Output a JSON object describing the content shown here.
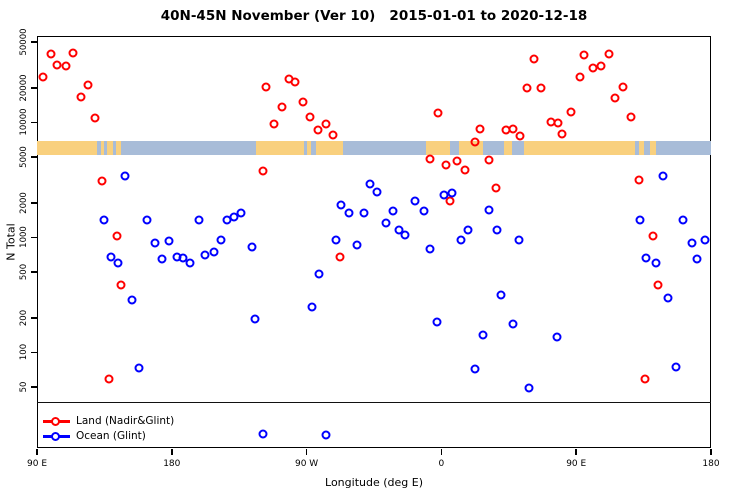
{
  "title": "40N-45N November (Ver 10)   2015-01-01 to 2020-12-18",
  "chart_data": {
    "type": "scatter",
    "xlabel": "Longitude (deg E)",
    "ylabel": "N Total",
    "y_scale": "log",
    "ylim": [
      15,
      60000
    ],
    "y_ticks": [
      50000,
      20000,
      10000,
      5000,
      2000,
      1000,
      500,
      200,
      100,
      50
    ],
    "x_axis": {
      "span_deg": 450,
      "note": "axis runs 90E eastward wrapping: 90E,180,90W,0,90E,180",
      "ticks": [
        {
          "deg": 0,
          "label": "90 E"
        },
        {
          "deg": 90,
          "label": "180"
        },
        {
          "deg": 180,
          "label": "90 W"
        },
        {
          "deg": 270,
          "label": "0"
        },
        {
          "deg": 360,
          "label": "90 E"
        },
        {
          "deg": 450,
          "label": "180"
        }
      ]
    },
    "legend": [
      {
        "name": "Land (Nadir&Glint)",
        "color": "#ff0000"
      },
      {
        "name": "Ocean (Glint)",
        "color": "#0000ff"
      }
    ],
    "map_band": {
      "meaning": "40N-45N latitude strip of world map",
      "land_color": "#f9d07e",
      "ocean_color": "#a8bcd8",
      "value_range_n": [
        5900,
        7600
      ],
      "land_segments_deg": [
        [
          0,
          40
        ],
        [
          43,
          45
        ],
        [
          47,
          51
        ],
        [
          53,
          56
        ],
        [
          146,
          178
        ],
        [
          180,
          183
        ],
        [
          186,
          204
        ],
        [
          260,
          276
        ],
        [
          282,
          298
        ],
        [
          312,
          317
        ],
        [
          325,
          399
        ],
        [
          402,
          405
        ],
        [
          409,
          413
        ]
      ]
    },
    "series": [
      {
        "name": "Land (Nadir&Glint)",
        "color": "#ff0000",
        "points": [
          [
            4.2,
            25000
          ],
          [
            9.1,
            39000
          ],
          [
            13.5,
            31500
          ],
          [
            19.3,
            31000
          ],
          [
            23.8,
            40400
          ],
          [
            29.1,
            16500
          ],
          [
            34.2,
            21000
          ],
          [
            38.7,
            11000
          ],
          [
            43.3,
            3100
          ],
          [
            47.8,
            59
          ],
          [
            53.3,
            1020
          ],
          [
            56,
            385
          ],
          [
            151.1,
            3800
          ],
          [
            152.7,
            20300
          ],
          [
            158.5,
            9600
          ],
          [
            163.8,
            13700
          ],
          [
            168.2,
            24000
          ],
          [
            172.2,
            22600
          ],
          [
            177.8,
            15100
          ],
          [
            182.2,
            11200
          ],
          [
            187.8,
            8650
          ],
          [
            192.7,
            9700
          ],
          [
            197.3,
            7800
          ],
          [
            202.2,
            677
          ],
          [
            262.2,
            4800
          ],
          [
            267.8,
            12000
          ],
          [
            272.9,
            4260
          ],
          [
            276,
            2080
          ],
          [
            280.7,
            4650
          ],
          [
            285.5,
            3850
          ],
          [
            292.2,
            6800
          ],
          [
            295.5,
            8700
          ],
          [
            302,
            4700
          ],
          [
            306.7,
            2670
          ],
          [
            312.9,
            8650
          ],
          [
            317.8,
            8700
          ],
          [
            322.2,
            7600
          ],
          [
            327.1,
            20000
          ],
          [
            331.8,
            35500
          ],
          [
            336.7,
            20000
          ],
          [
            343.3,
            10000
          ],
          [
            347.8,
            9800
          ],
          [
            350.7,
            7900
          ],
          [
            356.7,
            12400
          ],
          [
            362.7,
            25000
          ],
          [
            365.5,
            38800
          ],
          [
            371.5,
            30000
          ],
          [
            376.7,
            31000
          ],
          [
            382.2,
            39000
          ],
          [
            386.2,
            16400
          ],
          [
            391.5,
            20400
          ],
          [
            396.7,
            11100
          ],
          [
            402,
            3130
          ],
          [
            406,
            59
          ],
          [
            411.1,
            1030
          ],
          [
            414.5,
            383
          ]
        ]
      },
      {
        "name": "Ocean (Glint)",
        "color": "#0000ff",
        "points": [
          [
            44.5,
            1415
          ],
          [
            49.3,
            677
          ],
          [
            54,
            595
          ],
          [
            58.5,
            3420
          ],
          [
            63.3,
            283
          ],
          [
            68.2,
            73
          ],
          [
            73.3,
            1415
          ],
          [
            78.9,
            895
          ],
          [
            83.3,
            655
          ],
          [
            87.8,
            935
          ],
          [
            93.3,
            680
          ],
          [
            97.8,
            660
          ],
          [
            102.2,
            595
          ],
          [
            108.2,
            1415
          ],
          [
            112.2,
            705
          ],
          [
            118.2,
            740
          ],
          [
            122.9,
            950
          ],
          [
            126.7,
            1430
          ],
          [
            131.5,
            1495
          ],
          [
            136,
            1640
          ],
          [
            143.3,
            830
          ],
          [
            145.3,
            195
          ],
          [
            150.9,
            19.4
          ],
          [
            183.3,
            249
          ],
          [
            188.2,
            480
          ],
          [
            192.7,
            19
          ],
          [
            199.3,
            950
          ],
          [
            202.7,
            1900
          ],
          [
            208.2,
            1615
          ],
          [
            213.8,
            860
          ],
          [
            218.2,
            1620
          ],
          [
            222.2,
            2900
          ],
          [
            226.7,
            2500
          ],
          [
            233.3,
            1340
          ],
          [
            237.8,
            1700
          ],
          [
            241.5,
            1160
          ],
          [
            246,
            1050
          ],
          [
            252.7,
            2060
          ],
          [
            258.2,
            1700
          ],
          [
            262.2,
            790
          ],
          [
            267.3,
            184
          ],
          [
            271.8,
            2340
          ],
          [
            277.1,
            2450
          ],
          [
            283.3,
            940
          ],
          [
            287.8,
            1160
          ],
          [
            292.5,
            72
          ],
          [
            297.5,
            143
          ],
          [
            302,
            1720
          ],
          [
            307.1,
            1160
          ],
          [
            310,
            315
          ],
          [
            318,
            175
          ],
          [
            321.5,
            945
          ],
          [
            328.2,
            49
          ],
          [
            346.9,
            135
          ],
          [
            402.7,
            1410
          ],
          [
            406.7,
            660
          ],
          [
            413.3,
            595
          ],
          [
            417.8,
            3440
          ],
          [
            421.1,
            300
          ],
          [
            426.5,
            74
          ],
          [
            431.1,
            1415
          ],
          [
            437.3,
            900
          ],
          [
            440.5,
            655
          ],
          [
            446.2,
            945
          ]
        ]
      }
    ]
  }
}
